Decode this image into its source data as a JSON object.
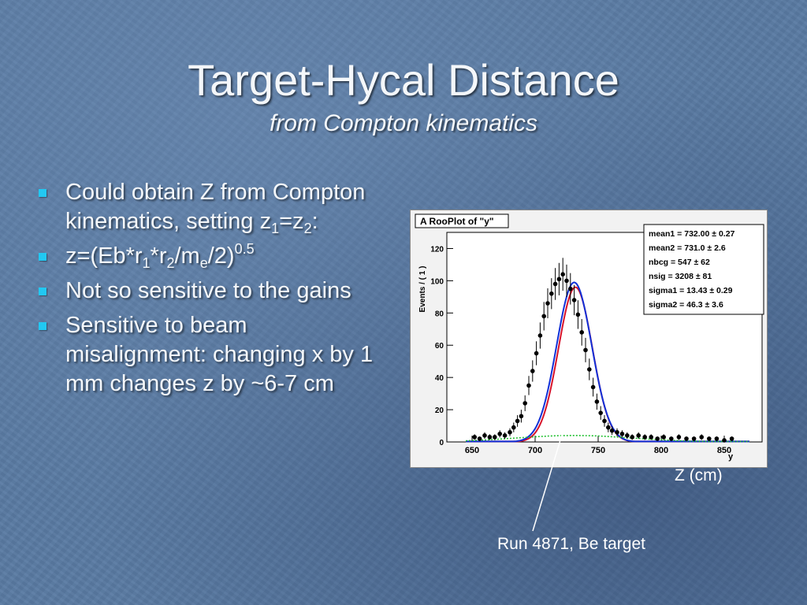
{
  "slide": {
    "title": "Target-Hycal Distance",
    "subtitle": "from Compton kinematics"
  },
  "bullets": [
    {
      "text_parts": [
        "Could obtain Z from Compton kinematics, setting z",
        "1",
        "=z",
        "2",
        ":"
      ]
    },
    {
      "text_parts": [
        "z=(Eb*r",
        "1",
        "*r",
        "2",
        "/m",
        "e",
        "/2)",
        "0.5"
      ]
    },
    {
      "text": "Not so sensitive to the gains"
    },
    {
      "text": "Sensitive to beam misalignment: changing x by 1 mm changes z by ~6-7 cm"
    }
  ],
  "plot": {
    "header": "A RooPlot of \"y\"",
    "z_label": "Z (cm)",
    "run_label": "Run 4871, Be target",
    "stats": [
      "mean1 =  732.00 ± 0.27",
      "mean2 =  731.0 ± 2.6",
      "nbcg =  547 ± 62",
      "nsig =  3208 ± 81",
      "sigma1 =  13.43 ± 0.29",
      "sigma2 =  46.3 ± 3.6"
    ]
  },
  "chart_data": {
    "type": "scatter",
    "title": "A RooPlot of \"y\"",
    "xlabel": "y",
    "ylabel": "Events / ( 1 )",
    "xlim": [
      630,
      880
    ],
    "ylim": [
      0,
      130
    ],
    "x_ticks": [
      650,
      700,
      750,
      800,
      850
    ],
    "y_ticks": [
      0,
      20,
      40,
      60,
      80,
      100,
      120
    ],
    "points": [
      [
        652,
        3
      ],
      [
        656,
        2
      ],
      [
        660,
        4
      ],
      [
        664,
        3
      ],
      [
        668,
        3
      ],
      [
        672,
        5
      ],
      [
        676,
        4
      ],
      [
        680,
        6
      ],
      [
        683,
        9
      ],
      [
        686,
        13
      ],
      [
        689,
        16
      ],
      [
        692,
        24
      ],
      [
        695,
        35
      ],
      [
        698,
        44
      ],
      [
        701,
        55
      ],
      [
        704,
        66
      ],
      [
        707,
        78
      ],
      [
        710,
        86
      ],
      [
        713,
        92
      ],
      [
        716,
        98
      ],
      [
        719,
        101
      ],
      [
        722,
        104
      ],
      [
        725,
        100
      ],
      [
        728,
        95
      ],
      [
        731,
        88
      ],
      [
        734,
        79
      ],
      [
        737,
        68
      ],
      [
        740,
        57
      ],
      [
        743,
        45
      ],
      [
        746,
        34
      ],
      [
        749,
        25
      ],
      [
        752,
        18
      ],
      [
        755,
        13
      ],
      [
        758,
        9
      ],
      [
        761,
        7
      ],
      [
        765,
        6
      ],
      [
        769,
        5
      ],
      [
        773,
        4
      ],
      [
        777,
        3
      ],
      [
        782,
        4
      ],
      [
        787,
        3
      ],
      [
        792,
        3
      ],
      [
        797,
        2
      ],
      [
        802,
        3
      ],
      [
        808,
        2
      ],
      [
        814,
        3
      ],
      [
        820,
        2
      ],
      [
        826,
        2
      ],
      [
        832,
        3
      ],
      [
        838,
        2
      ],
      [
        844,
        2
      ],
      [
        850,
        1
      ],
      [
        856,
        2
      ]
    ],
    "series": [
      {
        "name": "",
        "color": "#d8122a",
        "kind": "gauss",
        "mean": 732.0,
        "sigma": 13.43,
        "amp": 96
      },
      {
        "name": "",
        "color": "#1030d8",
        "kind": "gauss",
        "mean": 731.0,
        "sigma": 13.9,
        "amp": 99
      },
      {
        "name": "",
        "color": "#20c030",
        "kind": "gauss",
        "mean": 731.0,
        "sigma": 46.3,
        "amp": 4
      }
    ]
  }
}
